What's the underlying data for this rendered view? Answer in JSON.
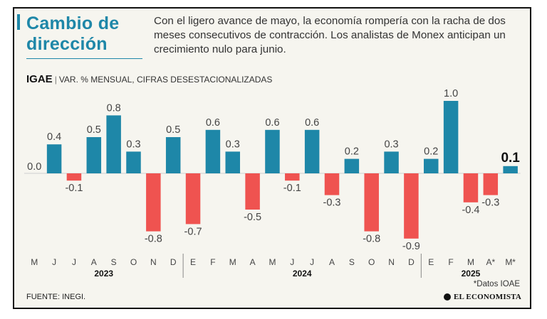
{
  "header": {
    "title": "Cambio de dirección",
    "subtitle": "Con el ligero avance de mayo, la economía rompería con la racha de dos meses consecutivos de contracción. Los analistas de Monex anticipan un crecimiento nulo para junio.",
    "series_name": "IGAE",
    "series_desc": "VAR. % MENSUAL, CIFRAS DESESTACIONALIZADAS"
  },
  "footer": {
    "source": "FUENTE: INEGI.",
    "footnote": "*Datos IOAE",
    "brand": "EL ECONOMISTA"
  },
  "colors": {
    "positive": "#1e87a8",
    "negative": "#ef5350",
    "title": "#1e87a8"
  },
  "chart_data": {
    "type": "bar",
    "categories": [
      "M",
      "J",
      "J",
      "A",
      "S",
      "O",
      "N",
      "D",
      "E",
      "F",
      "M",
      "A",
      "M",
      "J",
      "J",
      "A",
      "S",
      "O",
      "N",
      "D",
      "E",
      "F",
      "M",
      "A*",
      "M*"
    ],
    "values": [
      0.0,
      0.4,
      -0.1,
      0.5,
      0.8,
      0.3,
      -0.8,
      0.5,
      -0.7,
      0.6,
      0.3,
      -0.5,
      0.6,
      -0.1,
      0.6,
      -0.3,
      0.2,
      -0.8,
      0.3,
      -0.9,
      0.2,
      1.0,
      -0.4,
      -0.3,
      0.1
    ],
    "labels": [
      "0.0",
      "0.4",
      "-0.1",
      "0.5",
      "0.8",
      "0.3",
      "-0.8",
      "0.5",
      "-0.7",
      "0.6",
      "0.3",
      "-0.5",
      "0.6",
      "-0.1",
      "0.6",
      "-0.3",
      "0.2",
      "-0.8",
      "0.3",
      "-0.9",
      "0.2",
      "1.0",
      "-0.4",
      "-0.3",
      "0.1"
    ],
    "highlight_index": 24,
    "years": [
      {
        "label": "2023",
        "start": 0,
        "end": 7
      },
      {
        "label": "2024",
        "start": 8,
        "end": 19
      },
      {
        "label": "2025",
        "start": 20,
        "end": 24
      }
    ],
    "ylim": [
      -1.0,
      1.1
    ],
    "grid": false
  }
}
